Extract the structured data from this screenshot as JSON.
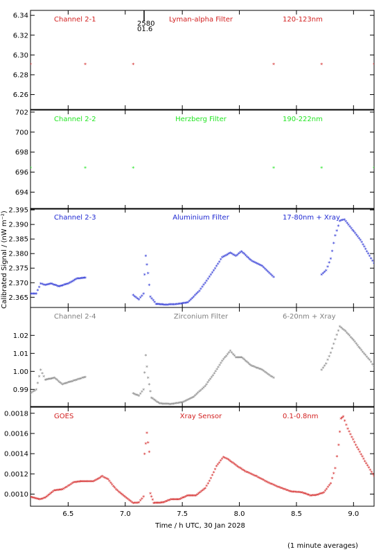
{
  "chart_data": {
    "type": "scatter",
    "xlabel": "Time / h UTC, 30 Jan 2028",
    "ylabel": "Calibrated Signal / (nW m⁻²)",
    "footnote": "(1 minute averages)",
    "marker_annotation": "2580\n01.6",
    "xlim": [
      6.17,
      9.18
    ],
    "xticks": [
      "6.5",
      "7.0",
      "7.5",
      "8.0",
      "8.5",
      "9.0"
    ],
    "panels": [
      {
        "channel": "Channel 2-1",
        "filter": "Lyman-alpha Filter",
        "band": "120-123nm",
        "color": "#d21e1e",
        "ylim": [
          6.245,
          6.345
        ],
        "yticks": [
          "6.26",
          "6.28",
          "6.30",
          "6.32",
          "6.34"
        ],
        "series": [
          [
            6.17,
            6.29
          ],
          [
            6.65,
            6.29
          ],
          [
            7.07,
            6.29
          ],
          [
            8.3,
            6.29
          ],
          [
            8.72,
            6.29
          ],
          [
            9.18,
            6.29
          ]
        ]
      },
      {
        "channel": "Channel 2-2",
        "filter": "Herzberg Filter",
        "band": "190-222nm",
        "color": "#22e522",
        "ylim": [
          692.3,
          702.2
        ],
        "yticks": [
          "694",
          "696",
          "698",
          "700",
          "702"
        ],
        "series": [
          [
            6.17,
            696.4
          ],
          [
            6.65,
            696.4
          ],
          [
            7.07,
            696.4
          ],
          [
            8.3,
            696.4
          ],
          [
            8.72,
            696.4
          ],
          [
            9.18,
            696.4
          ]
        ]
      },
      {
        "channel": "Channel 2-3",
        "filter": "Aluminium Filter",
        "band": "17-80nm + Xray",
        "color": "#1e28d2",
        "ylim": [
          2.3615,
          2.3955
        ],
        "yticks": [
          "2.365",
          "2.370",
          "2.375",
          "2.380",
          "2.385",
          "2.390",
          "2.395"
        ],
        "series": [
          [
            6.17,
            2.366
          ],
          [
            6.22,
            2.366
          ],
          [
            6.26,
            2.3695
          ],
          [
            6.3,
            2.369
          ],
          [
            6.35,
            2.3695
          ],
          [
            6.42,
            2.3685
          ],
          [
            6.5,
            2.3695
          ],
          [
            6.58,
            2.3712
          ],
          [
            6.65,
            2.3715
          ],
          [
            7.07,
            2.3655
          ],
          [
            7.12,
            2.364
          ],
          [
            7.16,
            2.366
          ],
          [
            7.18,
            2.379
          ],
          [
            7.2,
            2.373
          ],
          [
            7.22,
            2.365
          ],
          [
            7.27,
            2.3625
          ],
          [
            7.35,
            2.3622
          ],
          [
            7.45,
            2.3624
          ],
          [
            7.55,
            2.363
          ],
          [
            7.65,
            2.367
          ],
          [
            7.75,
            2.3725
          ],
          [
            7.85,
            2.3785
          ],
          [
            7.92,
            2.38
          ],
          [
            7.97,
            2.379
          ],
          [
            8.02,
            2.3805
          ],
          [
            8.1,
            2.3775
          ],
          [
            8.2,
            2.3755
          ],
          [
            8.3,
            2.3717
          ],
          [
            8.72,
            2.3725
          ],
          [
            8.76,
            2.374
          ],
          [
            8.8,
            2.378
          ],
          [
            8.84,
            2.386
          ],
          [
            8.88,
            2.391
          ],
          [
            8.92,
            2.3915
          ],
          [
            8.98,
            2.3885
          ],
          [
            9.06,
            2.3845
          ],
          [
            9.14,
            2.379
          ],
          [
            9.18,
            2.3765
          ]
        ]
      },
      {
        "channel": "Channel 2-4",
        "filter": "Zirconium Filter",
        "band": "6-20nm + Xray",
        "color": "#7f7f7f",
        "ylim": [
          0.9805,
          1.0355
        ],
        "yticks": [
          "0.99",
          "1.00",
          "1.01",
          "1.02"
        ],
        "series": [
          [
            6.17,
            0.9875
          ],
          [
            6.22,
            0.9895
          ],
          [
            6.26,
            1.0005
          ],
          [
            6.3,
            0.995
          ],
          [
            6.38,
            0.996
          ],
          [
            6.45,
            0.9925
          ],
          [
            6.55,
            0.9945
          ],
          [
            6.65,
            0.9965
          ],
          [
            7.07,
            0.9875
          ],
          [
            7.12,
            0.986
          ],
          [
            7.16,
            0.9895
          ],
          [
            7.18,
            1.0085
          ],
          [
            7.2,
            0.996
          ],
          [
            7.23,
            0.985
          ],
          [
            7.3,
            0.9818
          ],
          [
            7.4,
            0.9815
          ],
          [
            7.5,
            0.9825
          ],
          [
            7.6,
            0.9855
          ],
          [
            7.7,
            0.9915
          ],
          [
            7.78,
            0.9985
          ],
          [
            7.85,
            1.0055
          ],
          [
            7.92,
            1.011
          ],
          [
            7.97,
            1.0075
          ],
          [
            8.02,
            1.0075
          ],
          [
            8.1,
            1.003
          ],
          [
            8.2,
            1.0005
          ],
          [
            8.3,
            0.996
          ],
          [
            8.72,
            1.0005
          ],
          [
            8.76,
            1.004
          ],
          [
            8.8,
            1.01
          ],
          [
            8.84,
            1.0175
          ],
          [
            8.88,
            1.0245
          ],
          [
            8.93,
            1.022
          ],
          [
            9.0,
            1.017
          ],
          [
            9.08,
            1.0105
          ],
          [
            9.14,
            1.006
          ],
          [
            9.18,
            1.0025
          ]
        ]
      },
      {
        "channel": "GOES",
        "filter": "Xray Sensor",
        "band": "0.1-0.8nm",
        "color": "#d21e1e",
        "ylim": [
          0.00088,
          0.00186
        ],
        "yticks": [
          "0.0010",
          "0.0012",
          "0.0014",
          "0.0016",
          "0.0018"
        ],
        "series": [
          [
            6.17,
            0.000965
          ],
          [
            6.25,
            0.00094
          ],
          [
            6.3,
            0.00096
          ],
          [
            6.38,
            0.00103
          ],
          [
            6.45,
            0.00104
          ],
          [
            6.55,
            0.00111
          ],
          [
            6.62,
            0.00112
          ],
          [
            6.72,
            0.00112
          ],
          [
            6.8,
            0.00117
          ],
          [
            6.85,
            0.00114
          ],
          [
            6.92,
            0.00104
          ],
          [
            7.0,
            0.000965
          ],
          [
            7.07,
            0.000905
          ],
          [
            7.12,
            0.00091
          ],
          [
            7.16,
            0.00097
          ],
          [
            7.17,
            0.00139
          ],
          [
            7.19,
            0.0016
          ],
          [
            7.21,
            0.00141
          ],
          [
            7.22,
            0.001
          ],
          [
            7.25,
            0.000905
          ],
          [
            7.33,
            0.00091
          ],
          [
            7.4,
            0.00094
          ],
          [
            7.47,
            0.00094
          ],
          [
            7.55,
            0.00098
          ],
          [
            7.62,
            0.00098
          ],
          [
            7.7,
            0.00105
          ],
          [
            7.75,
            0.00115
          ],
          [
            7.8,
            0.00127
          ],
          [
            7.86,
            0.00136
          ],
          [
            7.9,
            0.00134
          ],
          [
            7.98,
            0.00127
          ],
          [
            8.05,
            0.00122
          ],
          [
            8.15,
            0.00117
          ],
          [
            8.25,
            0.00111
          ],
          [
            8.35,
            0.00106
          ],
          [
            8.45,
            0.00102
          ],
          [
            8.55,
            0.00101
          ],
          [
            8.62,
            0.00098
          ],
          [
            8.68,
            0.000985
          ],
          [
            8.74,
            0.00101
          ],
          [
            8.8,
            0.0011
          ],
          [
            8.84,
            0.00125
          ],
          [
            8.87,
            0.00148
          ],
          [
            8.89,
            0.00174
          ],
          [
            8.91,
            0.00176
          ],
          [
            8.95,
            0.00164
          ],
          [
            9.02,
            0.00148
          ],
          [
            9.1,
            0.00132
          ],
          [
            9.18,
            0.00117
          ]
        ]
      }
    ]
  }
}
